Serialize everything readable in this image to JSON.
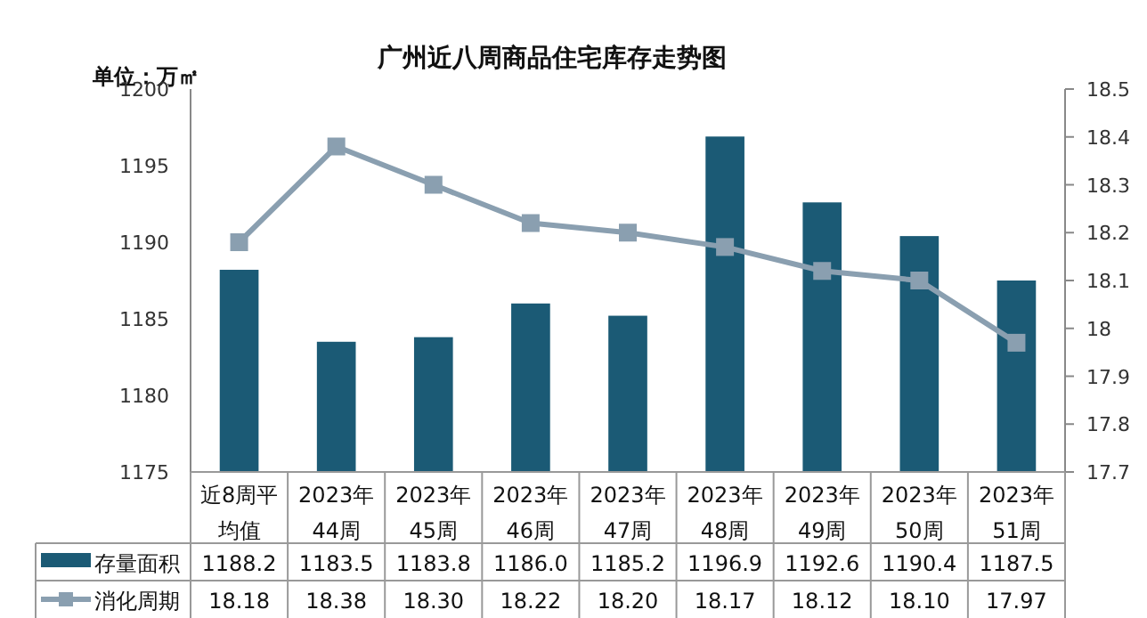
{
  "chart_data": {
    "type": "bar",
    "title": "广州近八周商品住宅库存走势图",
    "ylabel": "单位：万㎡",
    "categories": [
      "近8周平均值",
      "2023年44周",
      "2023年45周",
      "2023年46周",
      "2023年47周",
      "2023年48周",
      "2023年49周",
      "2023年50周",
      "2023年51周"
    ],
    "series": [
      {
        "name": "存量面积",
        "color": "#1b5a75",
        "values": [
          1188.2,
          1183.5,
          1183.8,
          1186.0,
          1185.2,
          1196.9,
          1192.6,
          1190.4,
          1187.5
        ],
        "value_labels": [
          "1188.2",
          "1183.5",
          "1183.8",
          "1186.0",
          "1185.2",
          "1196.9",
          "1192.6",
          "1190.4",
          "1187.5"
        ]
      },
      {
        "name": "消化周期",
        "type": "line",
        "axis": "y2",
        "color": "#8a9fb0",
        "marker": "square",
        "values": [
          18.18,
          18.38,
          18.3,
          18.22,
          18.2,
          18.17,
          18.12,
          18.1,
          17.97
        ],
        "value_labels": [
          "18.18",
          "18.38",
          "18.30",
          "18.22",
          "18.20",
          "18.17",
          "18.12",
          "18.10",
          "17.97"
        ]
      }
    ],
    "ylim": [
      1175,
      1200
    ],
    "yticks": [
      1175,
      1180,
      1185,
      1190,
      1195,
      1200
    ],
    "y2lim": [
      17.7,
      18.5
    ],
    "y2ticks": [
      {
        "value": 17.7,
        "label": "17.7"
      },
      {
        "value": 17.8,
        "label": "17.8"
      },
      {
        "value": 17.9,
        "label": "17.9"
      },
      {
        "value": 18,
        "label": "18"
      },
      {
        "value": 18.1,
        "label": "18.1"
      },
      {
        "value": 18.2,
        "label": "18.2"
      },
      {
        "value": 18.3,
        "label": "18.3"
      },
      {
        "value": 18.4,
        "label": "18.4"
      },
      {
        "value": 18.5,
        "label": "18.5"
      }
    ],
    "grid": false,
    "legend": "bottom left"
  }
}
